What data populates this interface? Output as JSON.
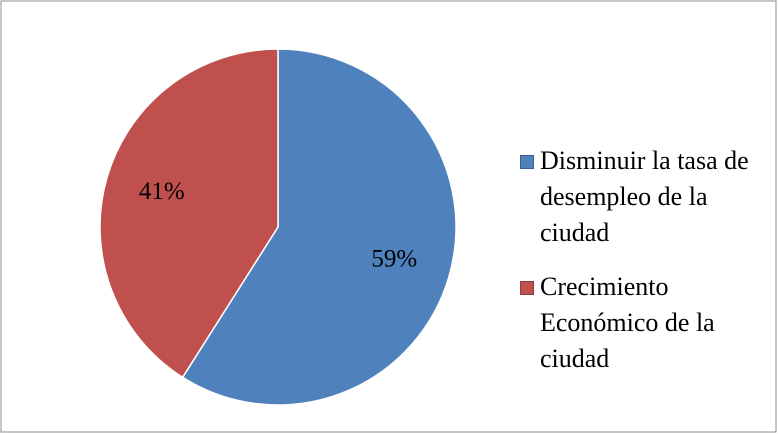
{
  "chart_data": {
    "type": "pie",
    "categories": [
      "Disminuir la tasa de desempleo de la ciudad",
      "Crecimiento Económico de la ciudad"
    ],
    "values": [
      59,
      41
    ],
    "value_labels": [
      "59%",
      "41%"
    ],
    "colors": [
      "#4f81bd",
      "#c0504d"
    ]
  }
}
